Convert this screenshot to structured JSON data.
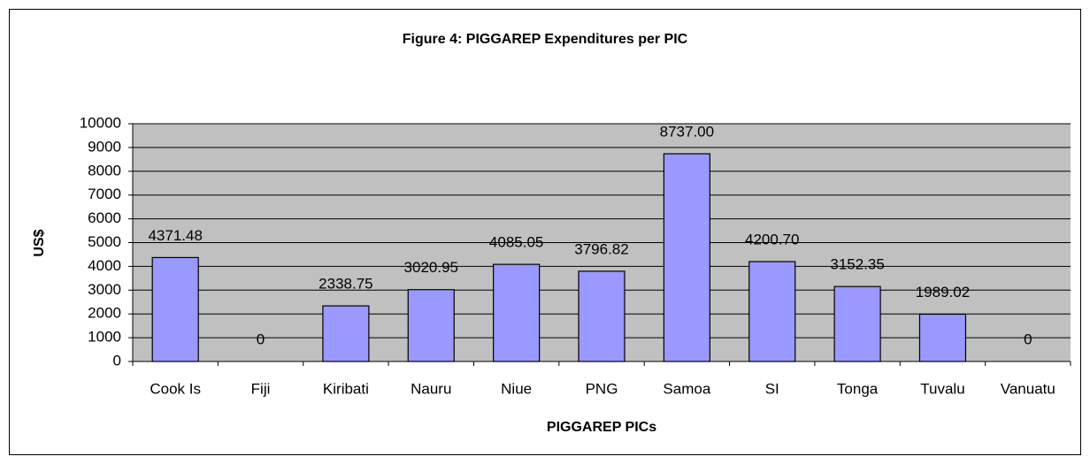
{
  "chart_data": {
    "type": "bar",
    "title": "Figure 4: PIGGAREP Expenditures per PIC",
    "x_label": "PIGGAREP PICs",
    "y_label": "US$",
    "categories": [
      "Cook Is",
      "Fiji",
      "Kiribati",
      "Nauru",
      "Niue",
      "PNG",
      "Samoa",
      "SI",
      "Tonga",
      "Tuvalu",
      "Vanuatu"
    ],
    "values": [
      4371.48,
      0,
      2338.75,
      3020.95,
      4085.05,
      3796.82,
      8737,
      4200.7,
      3152.35,
      1989.02,
      0
    ],
    "value_labels": [
      "4371.48",
      "0",
      "2338.75",
      "3020.95",
      "4085.05",
      "3796.82",
      "8737.00",
      "4200.70",
      "3152.35",
      "1989.02",
      "0"
    ],
    "color": "#9999ff",
    "ylim": [
      0,
      10000
    ],
    "yticks": [
      0,
      1000,
      2000,
      3000,
      4000,
      5000,
      6000,
      7000,
      8000,
      9000,
      10000
    ],
    "grid": true
  }
}
